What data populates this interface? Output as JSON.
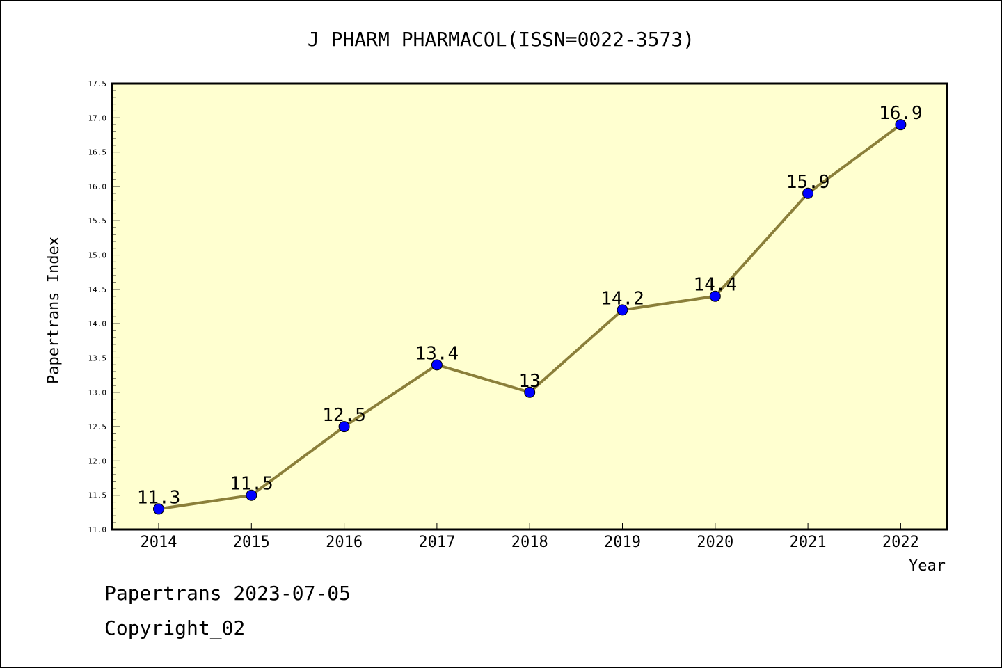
{
  "chart_data": {
    "type": "line",
    "title": "J PHARM PHARMACOL(ISSN=0022-3573)",
    "xlabel": "Year",
    "ylabel": "Papertrans Index",
    "x": [
      "2014",
      "2015",
      "2016",
      "2017",
      "2018",
      "2019",
      "2020",
      "2021",
      "2022"
    ],
    "y": [
      11.3,
      11.5,
      12.5,
      13.4,
      13.0,
      14.2,
      14.4,
      15.9,
      16.9
    ],
    "data_labels": [
      "11.3",
      "11.5",
      "12.5",
      "13.4",
      "13",
      "14.2",
      "14.4",
      "15.9",
      "16.9"
    ],
    "ylim": [
      11.0,
      17.5
    ],
    "y_ticks": [
      "11.0",
      "11.5",
      "12.0",
      "12.5",
      "13.0",
      "13.5",
      "14.0",
      "14.5",
      "15.0",
      "15.5",
      "16.0",
      "16.5",
      "17.0",
      "17.5"
    ],
    "grid": false,
    "colors": {
      "plot_background": "#ffffd0",
      "line": "#8b7f3a",
      "marker": "#0000ff"
    }
  },
  "footer": {
    "line1": "Papertrans 2023-07-05",
    "line2": "Copyright_02"
  }
}
